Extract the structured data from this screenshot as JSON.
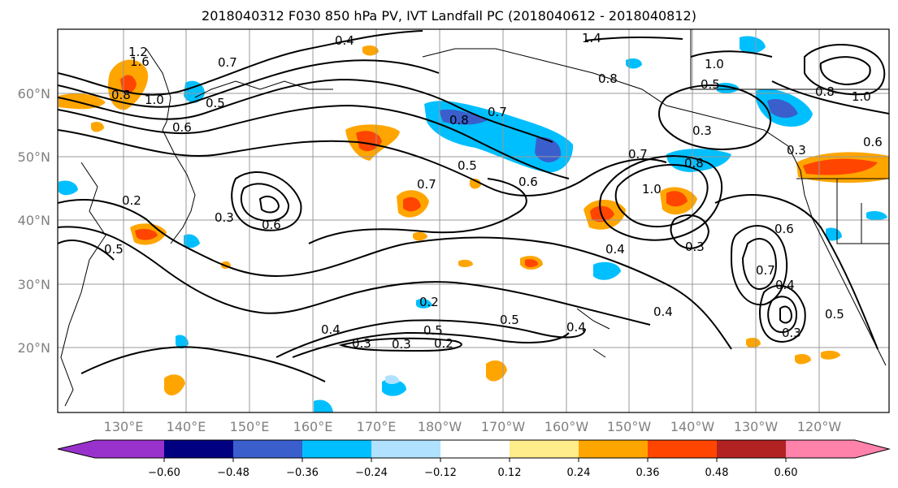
{
  "title": "2018040312 F030 850 hPa PV, IVT Landfall PC (2018040612 - 2018040812)",
  "map": {
    "lon_ticks": [
      "130°E",
      "140°E",
      "150°E",
      "160°E",
      "170°E",
      "180°W",
      "170°W",
      "160°W",
      "150°W",
      "140°W",
      "130°W",
      "120°W"
    ],
    "lat_ticks": [
      "60°N",
      "50°N",
      "40°N",
      "30°N",
      "20°N"
    ]
  },
  "colorbar": {
    "colors": [
      "#9932CC",
      "#000080",
      "#3A5FCD",
      "#00BFFF",
      "#B0E2FF",
      "#FFFFFF",
      "#FFEC8B",
      "#FFA500",
      "#FF4500",
      "#B22222",
      "#FF82AB"
    ],
    "tick_labels": [
      "−0.60",
      "−0.48",
      "−0.36",
      "−0.24",
      "−0.12",
      "0.12",
      "0.24",
      "0.36",
      "0.48",
      "0.60"
    ]
  },
  "contour_labels": [
    "1.2",
    "1.6",
    "0.8",
    "1.0",
    "0.7",
    "0.5",
    "0.6",
    "0.4",
    "1.4",
    "0.8",
    "0.7",
    "0.5",
    "0.3",
    "0.8",
    "0.5",
    "0.6",
    "0.7",
    "0.2",
    "0.3",
    "0.6",
    "0.5",
    "0.4",
    "1.0",
    "0.7",
    "0.8",
    "0.3",
    "0.4",
    "0.6",
    "0.7",
    "0.4",
    "0.5",
    "0.3",
    "0.2",
    "0.5",
    "0.4",
    "0.3",
    "0.2",
    "0.4",
    "0.3",
    "0.5",
    "1.0",
    "1.0",
    "0.8",
    "0.3",
    "0.6"
  ]
}
